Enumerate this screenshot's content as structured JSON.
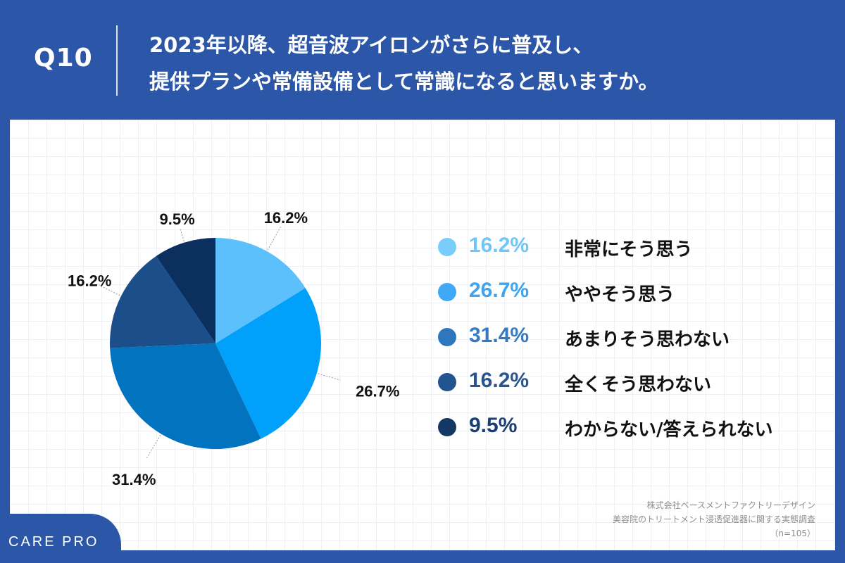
{
  "header": {
    "q_label": "Q10",
    "title_line1": "2023年以降、超音波アイロンがさらに普及し、",
    "title_line2": "提供プランや常備設備として常識になると思いますか。"
  },
  "colors": {
    "background": "#2c56a7",
    "slices": [
      "#5bc0fb",
      "#01a0fa",
      "#0273be",
      "#1c4f8a",
      "#0b2f5e"
    ],
    "legend_dots": [
      "#79cdfb",
      "#3fa9f5",
      "#2f77bd",
      "#22548f",
      "#143864"
    ],
    "legend_pct_text": [
      "#70c6f6",
      "#3fa3ee",
      "#3579be",
      "#28558d",
      "#1a3f74"
    ]
  },
  "chart_data": {
    "type": "pie",
    "title": "",
    "categories": [
      "非常にそう思う",
      "ややそう思う",
      "あまりそう思わない",
      "全くそう思わない",
      "わからない/答えられない"
    ],
    "values": [
      16.2,
      26.7,
      31.4,
      16.2,
      9.5
    ],
    "value_labels": [
      "16.2%",
      "26.7%",
      "31.4%",
      "16.2%",
      "9.5%"
    ],
    "start": "12 o'clock, clockwise",
    "legend_position": "right"
  },
  "legend": [
    {
      "pct": "16.2%",
      "label": "非常にそう思う"
    },
    {
      "pct": "26.7%",
      "label": "ややそう思う"
    },
    {
      "pct": "31.4%",
      "label": "あまりそう思わない"
    },
    {
      "pct": "16.2%",
      "label": "全くそう思わない"
    },
    {
      "pct": "9.5%",
      "label": "わからない/答えられない"
    }
  ],
  "source": {
    "line1": "株式会社ベースメントファクトリーデザイン",
    "line2": "美容院のトリートメント浸透促進器に関する実態調査",
    "line3": "（n=105）"
  },
  "logo": {
    "text": "CARE PRO"
  }
}
